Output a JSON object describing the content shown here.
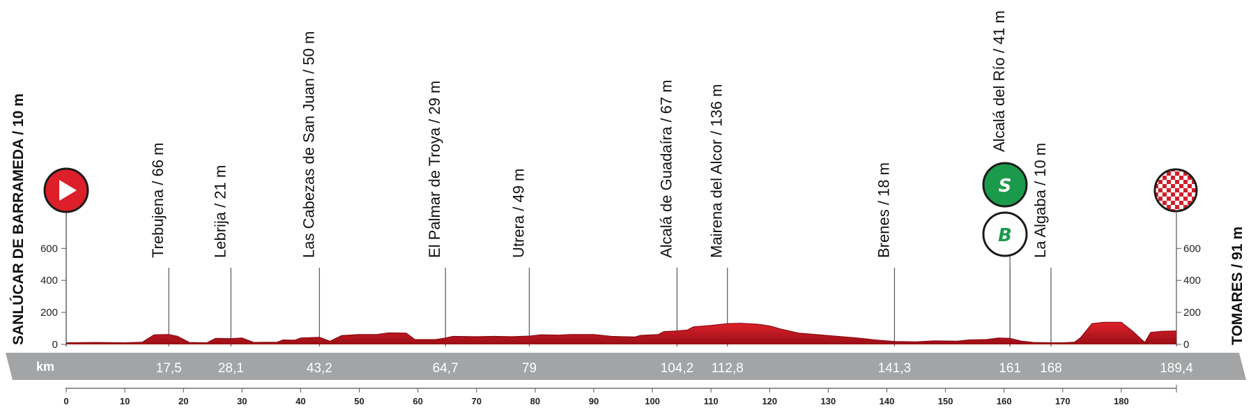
{
  "chart_data": {
    "type": "area",
    "title": "",
    "xlabel": "km",
    "ylabel": "",
    "xlim": [
      0,
      190
    ],
    "ylim": [
      0,
      700
    ],
    "x_ticks": [
      0,
      10,
      20,
      30,
      40,
      50,
      60,
      70,
      80,
      90,
      100,
      110,
      120,
      130,
      140,
      150,
      160,
      170,
      180
    ],
    "y_ticks": [
      0,
      200,
      400,
      600
    ],
    "start": {
      "label": "SANLÚCAR DE BARRAMEDA / 10 m",
      "km": 0
    },
    "finish": {
      "label": "TOMARES / 91 m",
      "km": 189.4
    },
    "points_of_interest": [
      {
        "km": 17.5,
        "km_label": "17,5",
        "label": "Trebujena / 66 m"
      },
      {
        "km": 28.1,
        "km_label": "28,1",
        "label": "Lebrija / 21 m"
      },
      {
        "km": 43.2,
        "km_label": "43,2",
        "label": "Las Cabezas de San Juan / 50 m"
      },
      {
        "km": 64.7,
        "km_label": "64,7",
        "label": "El Palmar de Troya / 29 m"
      },
      {
        "km": 79,
        "km_label": "79",
        "label": "Utrera / 49 m"
      },
      {
        "km": 104.2,
        "km_label": "104,2",
        "label": "Alcalá de Guadaíra / 67 m"
      },
      {
        "km": 112.8,
        "km_label": "112,8",
        "label": "Mairena del Alcor / 136 m"
      },
      {
        "km": 141.3,
        "km_label": "141,3",
        "label": "Brenes / 18 m"
      },
      {
        "km": 161,
        "km_label": "161",
        "label": "Alcalá del Río / 41 m",
        "badges": [
          "S",
          "B"
        ]
      },
      {
        "km": 168,
        "km_label": "168",
        "label": "La Algaba / 10 m"
      },
      {
        "km": 189.4,
        "km_label": "189,4",
        "label": ""
      }
    ],
    "profile": [
      [
        0,
        10
      ],
      [
        5,
        12
      ],
      [
        10,
        10
      ],
      [
        13,
        14
      ],
      [
        15,
        60
      ],
      [
        17.5,
        62
      ],
      [
        19,
        50
      ],
      [
        21,
        12
      ],
      [
        24,
        10
      ],
      [
        25.5,
        38
      ],
      [
        28.1,
        36
      ],
      [
        30,
        40
      ],
      [
        32,
        12
      ],
      [
        36,
        14
      ],
      [
        37,
        28
      ],
      [
        39,
        26
      ],
      [
        40,
        40
      ],
      [
        43.2,
        44
      ],
      [
        45,
        20
      ],
      [
        47,
        55
      ],
      [
        50,
        62
      ],
      [
        53,
        62
      ],
      [
        55,
        72
      ],
      [
        58,
        70
      ],
      [
        59.5,
        30
      ],
      [
        63,
        30
      ],
      [
        64.7,
        40
      ],
      [
        66,
        50
      ],
      [
        70,
        48
      ],
      [
        73,
        50
      ],
      [
        76,
        48
      ],
      [
        79,
        52
      ],
      [
        81,
        60
      ],
      [
        84,
        58
      ],
      [
        86,
        62
      ],
      [
        90,
        62
      ],
      [
        93,
        50
      ],
      [
        97,
        46
      ],
      [
        98,
        56
      ],
      [
        101,
        62
      ],
      [
        102,
        80
      ],
      [
        104.2,
        84
      ],
      [
        106,
        90
      ],
      [
        107,
        110
      ],
      [
        110,
        118
      ],
      [
        112.8,
        130
      ],
      [
        115,
        132
      ],
      [
        118,
        126
      ],
      [
        120,
        115
      ],
      [
        122,
        95
      ],
      [
        125,
        70
      ],
      [
        130,
        55
      ],
      [
        135,
        40
      ],
      [
        138,
        28
      ],
      [
        141.3,
        18
      ],
      [
        145,
        16
      ],
      [
        148,
        22
      ],
      [
        152,
        20
      ],
      [
        154,
        28
      ],
      [
        157,
        30
      ],
      [
        159,
        40
      ],
      [
        161,
        38
      ],
      [
        163,
        20
      ],
      [
        165,
        12
      ],
      [
        168,
        10
      ],
      [
        170,
        10
      ],
      [
        172,
        14
      ],
      [
        173,
        40
      ],
      [
        175,
        130
      ],
      [
        177,
        138
      ],
      [
        180,
        138
      ],
      [
        182,
        80
      ],
      [
        184,
        12
      ],
      [
        185,
        75
      ],
      [
        187,
        82
      ],
      [
        189.4,
        84
      ]
    ],
    "colors": {
      "profile_fill": "#b3121c",
      "profile_top": "#dc1f29",
      "km_bar": "#a2a4a6",
      "start_icon": "#dc1f29",
      "sprint_badge": "#1b9a4b",
      "finish_check": "#d21e28"
    },
    "icons": {
      "start": "play-arrow-icon",
      "finish": "checkered-flag-icon",
      "sprint": "intermediate-sprint-icon",
      "bonus": "bonus-seconds-icon"
    }
  }
}
